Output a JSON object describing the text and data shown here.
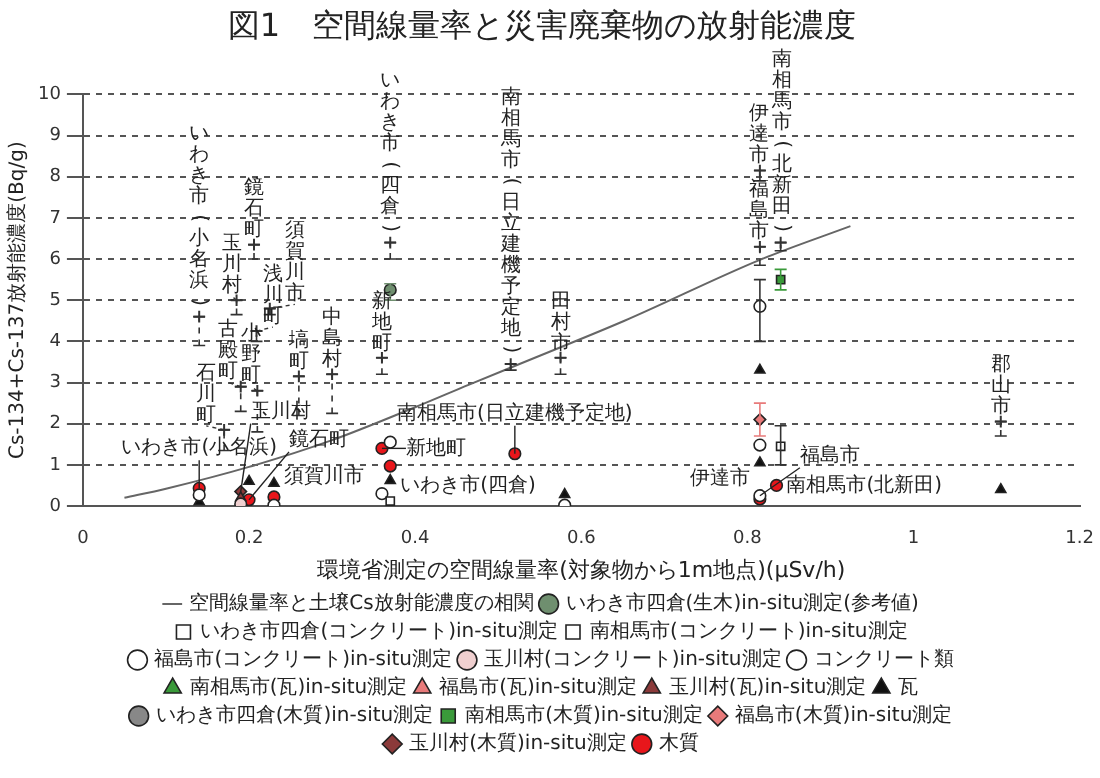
{
  "chart_data": {
    "type": "scatter",
    "title": "図1　空間線量率と災害廃棄物の放射能濃度",
    "xlabel": "環境省測定の空間線量率(対象物から1m地点)(μSv/h)",
    "ylabel": "Cs-134+Cs-137放射能濃度(Bq/g)",
    "xlim": [
      0,
      1.2
    ],
    "xticks": [
      0,
      0.2,
      0.4,
      0.6,
      0.8,
      1,
      1.2
    ],
    "ylim": [
      0,
      10
    ],
    "yticks": [
      0,
      1,
      2,
      3,
      4,
      5,
      6,
      7,
      8,
      9,
      10
    ],
    "grid": "y",
    "legend": "bottom",
    "series": [
      {
        "name": "木質",
        "color": "#e8161b",
        "marker": "circle",
        "x": [
          0.14,
          0.2,
          0.23,
          0.36,
          0.37,
          0.52,
          0.815,
          0.835
        ],
        "values": [
          0.43,
          0.15,
          0.22,
          1.4,
          0.97,
          1.27,
          0.17,
          0.5
        ],
        "value_labels": [
          "いわき市(小名浜)",
          "鏡石町",
          "須賀川市",
          "新地町",
          "いわき市(四倉)",
          "南相馬市(日立建機予定地)",
          "伊達市",
          "南相馬市(北新田)"
        ]
      },
      {
        "name": "玉川村(木質)in-situ測定",
        "color": "#8b3a3a",
        "marker": "diamond",
        "x": [
          0.19
        ],
        "values": [
          0.35
        ],
        "value_labels": [
          "玉川村"
        ]
      },
      {
        "name": "福島市(木質)in-situ測定",
        "color": "#e87a7a",
        "marker": "diamond",
        "x": [
          0.815
        ],
        "values": [
          2.1
        ],
        "errors": [
          [
            1.7,
            2.5
          ]
        ]
      },
      {
        "name": "南相馬市(木質)in-situ測定",
        "color": "#3a9a3a",
        "marker": "square",
        "x": [
          0.84
        ],
        "values": [
          5.5
        ],
        "errors": [
          [
            5.25,
            5.75
          ]
        ]
      },
      {
        "name": "いわき市四倉(木質)in-situ測定",
        "color": "#888888",
        "marker": "circle"
      },
      {
        "name": "瓦",
        "color": "#111111",
        "marker": "triangle",
        "x": [
          0.14,
          0.2,
          0.23,
          0.37,
          0.58,
          0.815,
          0.815,
          1.105
        ],
        "values": [
          0.1,
          0.6,
          0.55,
          0.62,
          0.28,
          1.05,
          3.3,
          0.4
        ]
      },
      {
        "name": "玉川村(瓦)in-situ測定",
        "color": "#8b3a3a",
        "marker": "triangle",
        "x": [
          0.19
        ],
        "values": [
          0.2
        ]
      },
      {
        "name": "福島市(瓦)in-situ測定",
        "color": "#e87a7a",
        "marker": "triangle"
      },
      {
        "name": "南相馬市(瓦)in-situ測定",
        "color": "#3a9a3a",
        "marker": "triangle"
      },
      {
        "name": "コンクリート類",
        "color": "#ffffff",
        "marker": "circle",
        "x": [
          0.14,
          0.23,
          0.36,
          0.37,
          0.58,
          0.815
        ],
        "values": [
          0.27,
          0.02,
          0.3,
          1.55,
          0.02,
          1.48
        ]
      },
      {
        "name": "玉川村(コンクリート)in-situ測定",
        "color": "#f0d0d0",
        "marker": "circle",
        "x": [
          0.19
        ],
        "values": [
          0.05
        ]
      },
      {
        "name": "福島市(コンクリート)in-situ測定",
        "color": "#ffffff",
        "marker": "circle",
        "x": [
          0.815,
          0.815
        ],
        "values": [
          4.85,
          0.25
        ],
        "errors": [
          [
            4.0,
            5.5
          ],
          null
        ],
        "value_labels": [
          null,
          "福島市"
        ]
      },
      {
        "name": "南相馬市(コンクリート)in-situ測定",
        "color": "#ffffff",
        "marker": "square",
        "x": [
          0.84
        ],
        "values": [
          1.45
        ],
        "errors": [
          [
            1.0,
            1.95
          ]
        ]
      },
      {
        "name": "いわき市四倉(コンクリート)in-situ測定",
        "color": "#ffffff",
        "marker": "square",
        "x": [
          0.37
        ],
        "values": [
          0.12
        ]
      },
      {
        "name": "いわき市四倉(生木)in-situ測定(参考値)",
        "color": "#6f8f6f",
        "marker": "circle",
        "x": [
          0.37
        ],
        "values": [
          5.25
        ],
        "errors": [
          [
            5.0,
            5.4
          ]
        ]
      },
      {
        "name": "空間線量率と土壌Cs放射能濃度の相関",
        "type": "line",
        "color": "#666666",
        "marker": "none",
        "x": [
          0.05,
          0.1,
          0.2,
          0.3,
          0.4,
          0.465,
          0.55,
          0.652,
          0.815,
          0.924
        ],
        "values": [
          0.2,
          0.42,
          0.95,
          1.6,
          2.4,
          2.95,
          3.65,
          4.5,
          5.98,
          6.8
        ]
      },
      {
        "type": "scatter",
        "color": "#333333",
        "marker": "cross",
        "line_style": "dashed",
        "x": [
          0.14,
          0.17,
          0.185,
          0.19,
          0.206,
          0.209,
          0.21,
          0.225,
          0.26,
          0.3,
          0.37,
          0.36,
          0.515,
          0.575,
          0.815,
          0.84,
          0.815,
          1.105
        ],
        "values": [
          4.6,
          1.85,
          5.0,
          2.9,
          6.35,
          4.25,
          2.8,
          4.8,
          3.15,
          3.2,
          6.4,
          3.6,
          3.45,
          3.6,
          8.15,
          6.4,
          6.3,
          2.05
        ],
        "errors": [
          [
            3.9,
            4.6
          ],
          [
            1.35,
            1.85
          ],
          [
            4.65,
            5.0
          ],
          [
            2.3,
            2.9
          ],
          [
            6.0,
            6.35
          ],
          [
            4.0,
            4.25
          ],
          [
            1.8,
            2.8
          ],
          [
            4.65,
            4.8
          ],
          [
            2.2,
            3.15
          ],
          [
            2.25,
            3.2
          ],
          [
            6.0,
            6.4
          ],
          [
            3.2,
            3.6
          ],
          [
            3.3,
            3.45
          ],
          [
            3.2,
            3.6
          ],
          [
            7.9,
            8.15
          ],
          [
            6.2,
            6.4
          ],
          [
            5.85,
            6.3
          ],
          [
            1.7,
            2.05
          ]
        ],
        "value_labels": [
          "いわき市(小名浜)",
          "石川町",
          "玉川村",
          "古殿町",
          "鏡石町",
          "浅川町",
          "小野町",
          "須賀川市",
          "塙町",
          "中島村",
          "いわき市(四倉)",
          "新地町",
          "南相馬市(日立建機予定地)",
          "田村市",
          "伊達市",
          "南相馬市(北新田)",
          "福島市",
          "郡山市"
        ]
      }
    ]
  }
}
